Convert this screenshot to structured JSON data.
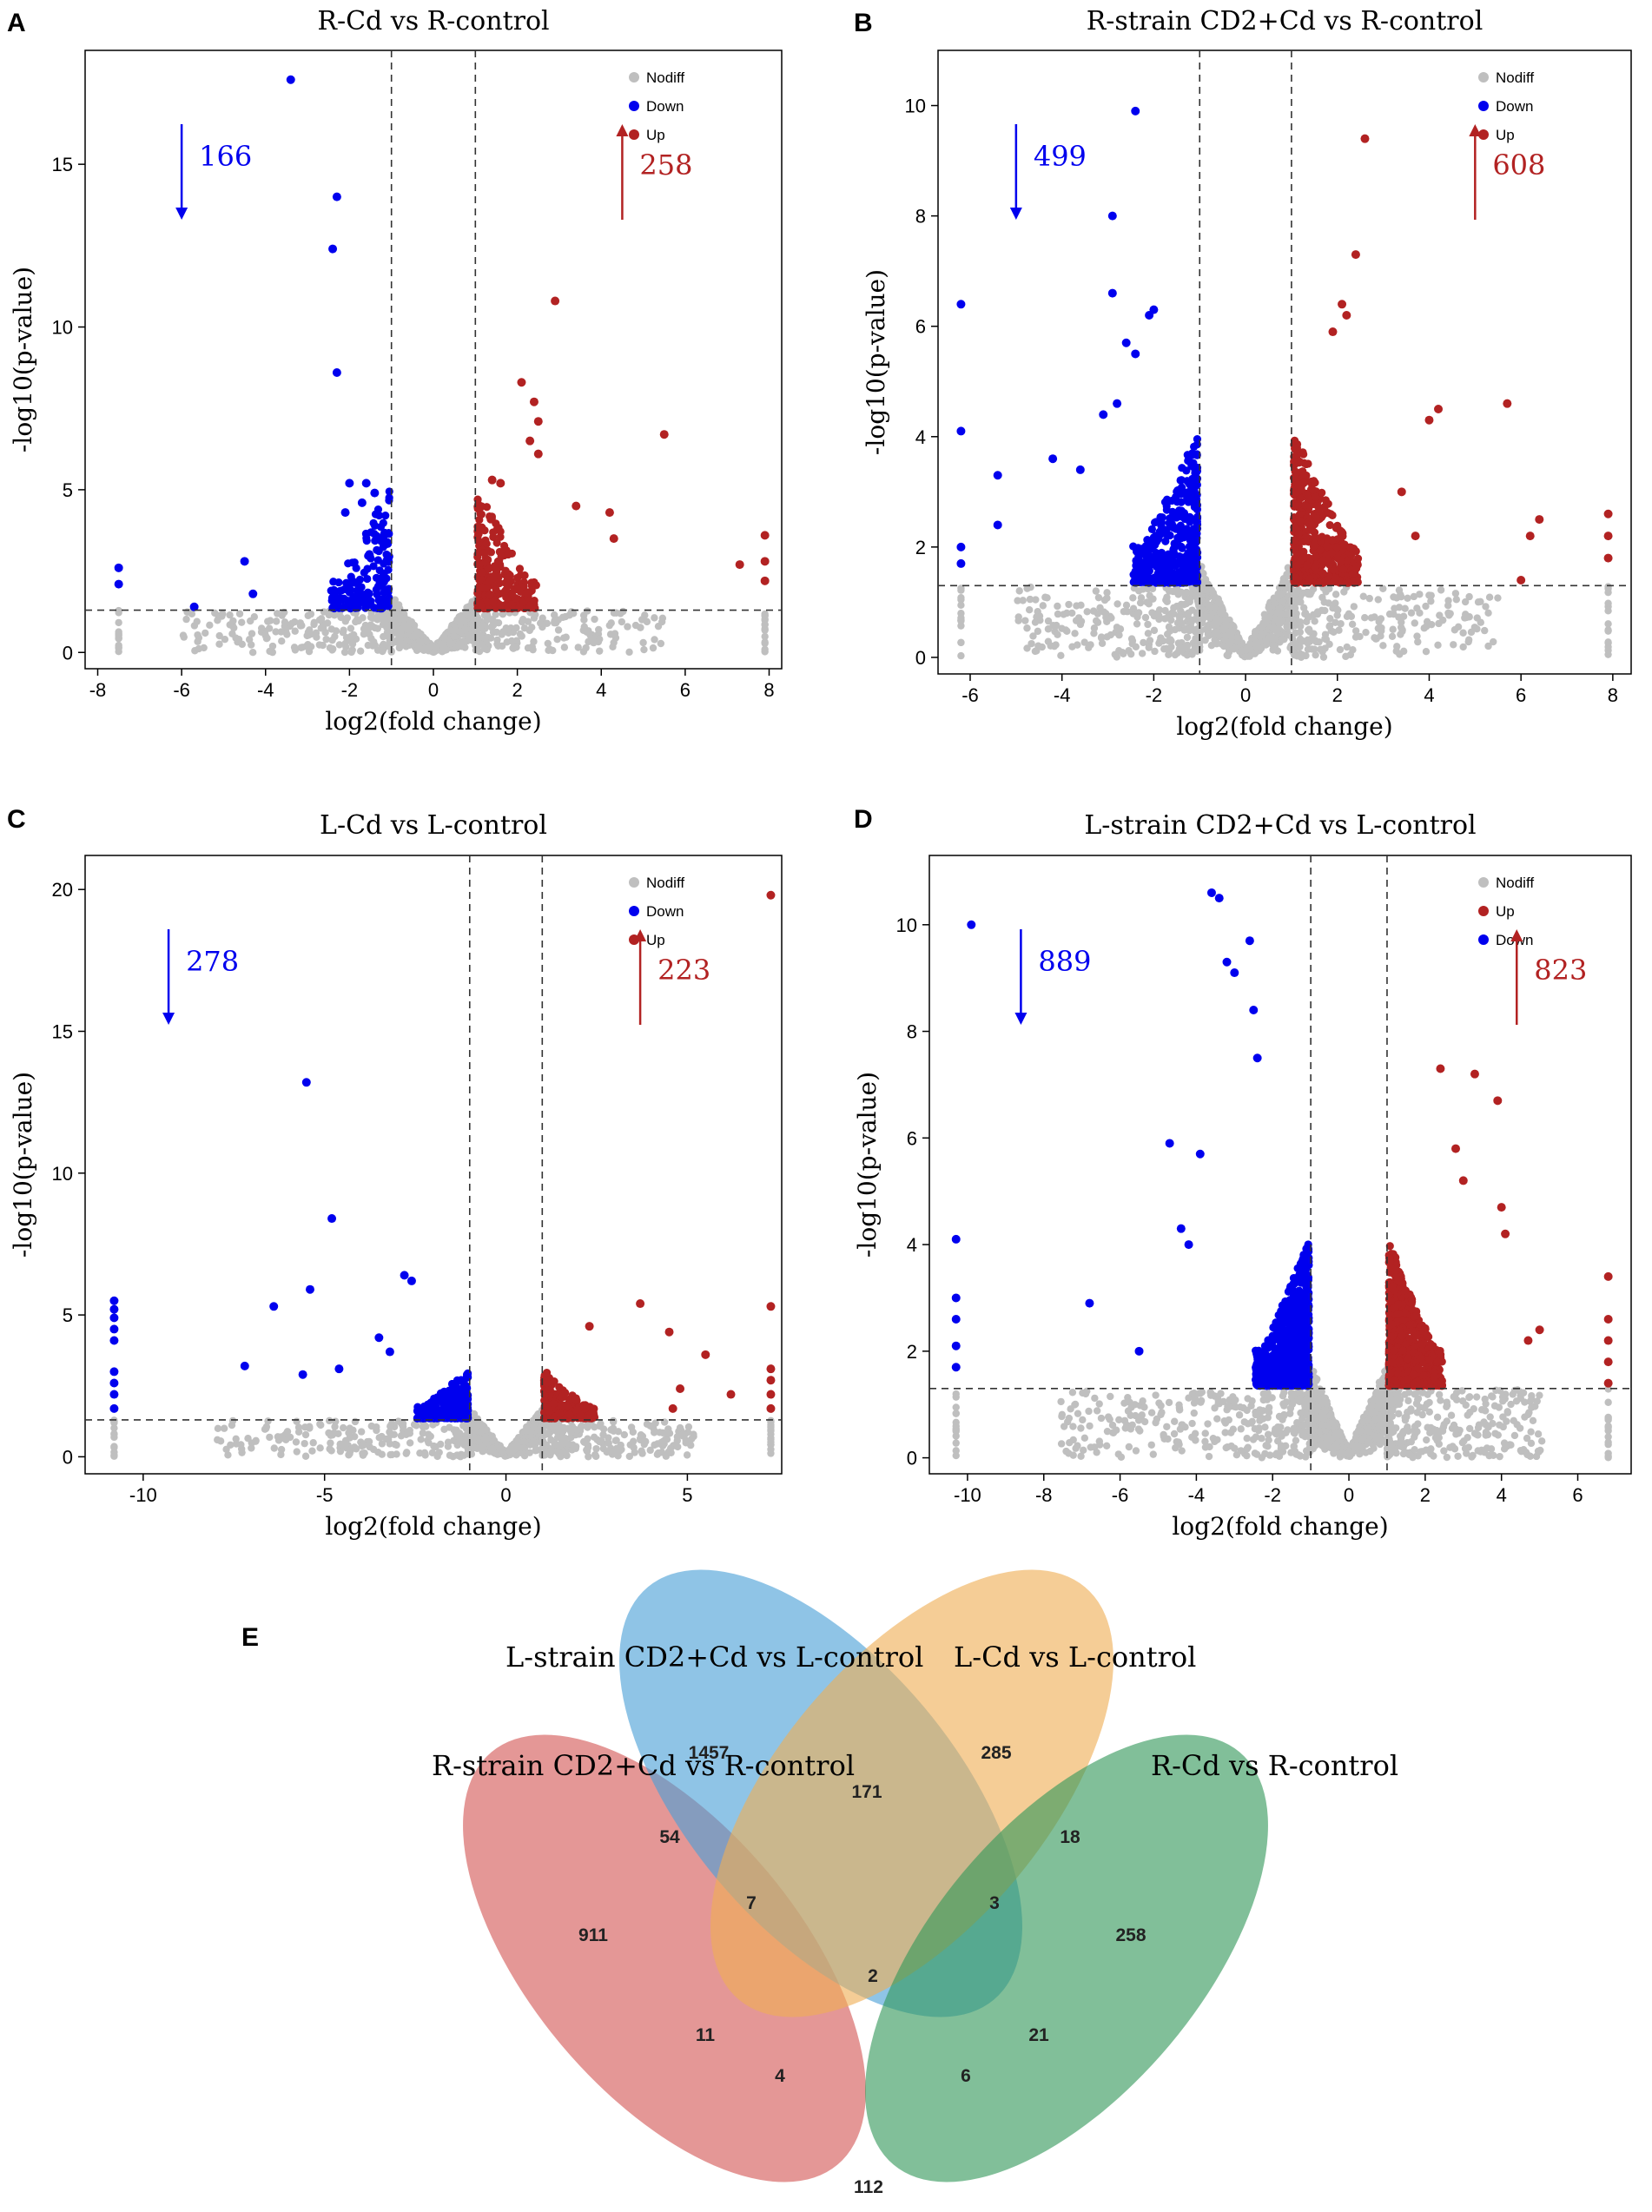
{
  "colors": {
    "nodiff": "#bfbfbf",
    "down": "#0000ee",
    "up": "#b22222",
    "axis": "#000000"
  },
  "chart_data": [
    {
      "panel": "A",
      "type": "scatter",
      "title": "R-Cd vs R-control",
      "xlabel": "log2(fold change)",
      "ylabel": "-log10(p-value)",
      "xlim": [
        -8.3,
        8.3
      ],
      "ylim": [
        -0.5,
        18.5
      ],
      "xticks": [
        -8,
        -6,
        -4,
        -2,
        0,
        2,
        4,
        6,
        8
      ],
      "yticks": [
        0,
        5,
        10,
        15
      ],
      "fc_threshold": 1,
      "p_threshold": 1.3,
      "extreme_x": [
        -7.5,
        7.9
      ],
      "ymax_cloud": 5,
      "legend": [
        {
          "label": "Nodiff",
          "color": "#bfbfbf"
        },
        {
          "label": "Down",
          "color": "#0000ee"
        },
        {
          "label": "Up",
          "color": "#b22222"
        }
      ],
      "down_count": "166",
      "up_count": "258",
      "down_arrow_x": -6,
      "up_arrow_x": 4.5,
      "series": {
        "down": [
          [
            -3.4,
            17.6
          ],
          [
            -2.3,
            14.0
          ],
          [
            -2.4,
            12.4
          ],
          [
            -2.3,
            8.6
          ],
          [
            -2.0,
            5.2
          ],
          [
            -1.6,
            5.2
          ],
          [
            -1.4,
            4.9
          ],
          [
            -4.5,
            2.8
          ],
          [
            -4.3,
            1.8
          ],
          [
            -5.7,
            1.4
          ],
          [
            -7.5,
            2.6
          ],
          [
            -7.5,
            2.1
          ],
          [
            -1.7,
            4.6
          ],
          [
            -2.1,
            4.3
          ]
        ],
        "up": [
          [
            2.9,
            10.8
          ],
          [
            5.5,
            6.7
          ],
          [
            2.1,
            8.3
          ],
          [
            2.4,
            7.7
          ],
          [
            2.5,
            7.1
          ],
          [
            2.3,
            6.5
          ],
          [
            2.5,
            6.1
          ],
          [
            1.4,
            5.3
          ],
          [
            1.6,
            5.2
          ],
          [
            3.4,
            4.5
          ],
          [
            4.3,
            3.5
          ],
          [
            4.2,
            4.3
          ],
          [
            7.9,
            3.6
          ],
          [
            7.9,
            2.8
          ],
          [
            7.9,
            2.2
          ],
          [
            7.3,
            2.7
          ]
        ]
      },
      "n_down_dense": 150,
      "n_up_dense": 240,
      "n_nodiff": 900
    },
    {
      "panel": "B",
      "type": "scatter",
      "title": "R-strain CD2+Cd vs R-control",
      "xlabel": "log2(fold change)",
      "ylabel": "-log10(p-value)",
      "xlim": [
        -6.7,
        8.4
      ],
      "ylim": [
        -0.3,
        11
      ],
      "xticks": [
        -6,
        -4,
        -2,
        0,
        2,
        4,
        6,
        8
      ],
      "yticks": [
        0,
        2,
        4,
        6,
        8,
        10
      ],
      "fc_threshold": 1,
      "p_threshold": 1.3,
      "extreme_x": [
        -6.2,
        7.9
      ],
      "ymax_cloud": 4,
      "legend": [
        {
          "label": "Nodiff",
          "color": "#bfbfbf"
        },
        {
          "label": "Down",
          "color": "#0000ee"
        },
        {
          "label": "Up",
          "color": "#b22222"
        }
      ],
      "down_count": "499",
      "up_count": "608",
      "down_arrow_x": -5,
      "up_arrow_x": 5,
      "series": {
        "down": [
          [
            -2.4,
            9.9
          ],
          [
            -2.9,
            8.0
          ],
          [
            -2.9,
            6.6
          ],
          [
            -6.2,
            6.4
          ],
          [
            -2.0,
            6.3
          ],
          [
            -2.1,
            6.2
          ],
          [
            -6.2,
            4.1
          ],
          [
            -2.6,
            5.7
          ],
          [
            -2.4,
            5.5
          ],
          [
            -4.2,
            3.6
          ],
          [
            -5.4,
            3.3
          ],
          [
            -3.6,
            3.4
          ],
          [
            -6.2,
            2.0
          ],
          [
            -6.2,
            1.7
          ],
          [
            -5.4,
            2.4
          ],
          [
            -3.1,
            4.4
          ],
          [
            -2.8,
            4.6
          ]
        ],
        "up": [
          [
            2.6,
            9.4
          ],
          [
            2.4,
            7.3
          ],
          [
            2.1,
            6.4
          ],
          [
            2.2,
            6.2
          ],
          [
            1.9,
            5.9
          ],
          [
            4.2,
            4.5
          ],
          [
            5.7,
            4.6
          ],
          [
            4.0,
            4.3
          ],
          [
            6.4,
            2.5
          ],
          [
            6.2,
            2.2
          ],
          [
            6.0,
            1.4
          ],
          [
            7.9,
            2.6
          ],
          [
            7.9,
            2.2
          ],
          [
            7.9,
            1.8
          ],
          [
            3.7,
            2.2
          ],
          [
            3.4,
            3.0
          ]
        ]
      },
      "n_down_dense": 420,
      "n_up_dense": 520,
      "n_nodiff": 1100
    },
    {
      "panel": "C",
      "type": "scatter",
      "title": "L-Cd vs L-control",
      "xlabel": "log2(fold change)",
      "ylabel": "-log10(p-value)",
      "xlim": [
        -11.6,
        7.6
      ],
      "ylim": [
        -0.6,
        21.2
      ],
      "xticks": [
        -10,
        -5,
        0,
        5
      ],
      "yticks": [
        0,
        5,
        10,
        15,
        20
      ],
      "fc_threshold": 1,
      "p_threshold": 1.3,
      "extreme_x": [
        -10.8,
        7.3
      ],
      "ymax_cloud": 3,
      "legend": [
        {
          "label": "Nodiff",
          "color": "#bfbfbf"
        },
        {
          "label": "Down",
          "color": "#0000ee"
        },
        {
          "label": "Up",
          "color": "#b22222"
        }
      ],
      "down_count": "278",
      "up_count": "223",
      "down_arrow_x": -9.3,
      "up_arrow_x": 3.7,
      "series": {
        "down": [
          [
            -5.5,
            13.2
          ],
          [
            -4.8,
            8.4
          ],
          [
            -2.8,
            6.4
          ],
          [
            -2.6,
            6.2
          ],
          [
            -5.4,
            5.9
          ],
          [
            -6.4,
            5.3
          ],
          [
            -7.2,
            3.2
          ],
          [
            -10.8,
            5.5
          ],
          [
            -10.8,
            5.2
          ],
          [
            -10.8,
            4.9
          ],
          [
            -10.8,
            4.5
          ],
          [
            -10.8,
            4.1
          ],
          [
            -10.8,
            3.0
          ],
          [
            -10.8,
            2.6
          ],
          [
            -10.8,
            2.2
          ],
          [
            -10.8,
            1.7
          ],
          [
            -4.6,
            3.1
          ],
          [
            -3.5,
            4.2
          ],
          [
            -3.2,
            3.7
          ],
          [
            -5.6,
            2.9
          ]
        ],
        "up": [
          [
            7.3,
            19.8
          ],
          [
            3.7,
            5.4
          ],
          [
            4.5,
            4.4
          ],
          [
            2.3,
            4.6
          ],
          [
            7.3,
            5.3
          ],
          [
            7.3,
            3.1
          ],
          [
            7.3,
            2.7
          ],
          [
            7.3,
            2.2
          ],
          [
            7.3,
            1.7
          ],
          [
            5.5,
            3.6
          ],
          [
            6.2,
            2.2
          ],
          [
            4.6,
            1.7
          ],
          [
            4.8,
            2.4
          ]
        ]
      },
      "n_down_dense": 250,
      "n_up_dense": 200,
      "n_nodiff": 900
    },
    {
      "panel": "D",
      "type": "scatter",
      "title": "L-strain CD2+Cd vs L-control",
      "xlabel": "log2(fold change)",
      "ylabel": "-log10(p-value)",
      "xlim": [
        -11,
        7.4
      ],
      "ylim": [
        -0.3,
        11.3
      ],
      "xticks": [
        -10,
        -8,
        -6,
        -4,
        -2,
        0,
        2,
        4,
        6
      ],
      "yticks": [
        0,
        2,
        4,
        6,
        8,
        10
      ],
      "fc_threshold": 1,
      "p_threshold": 1.3,
      "extreme_x": [
        -10.3,
        6.8
      ],
      "ymax_cloud": 4,
      "legend": [
        {
          "label": "Nodiff",
          "color": "#bfbfbf"
        },
        {
          "label": "Up",
          "color": "#b22222"
        },
        {
          "label": "Down",
          "color": "#0000ee"
        }
      ],
      "down_count": "889",
      "up_count": "823",
      "down_arrow_x": -8.6,
      "up_arrow_x": 4.4,
      "series": {
        "down": [
          [
            -3.6,
            10.6
          ],
          [
            -3.4,
            10.5
          ],
          [
            -9.9,
            10.0
          ],
          [
            -2.6,
            9.7
          ],
          [
            -3.2,
            9.3
          ],
          [
            -3.0,
            9.1
          ],
          [
            -2.5,
            8.4
          ],
          [
            -2.4,
            7.5
          ],
          [
            -4.7,
            5.9
          ],
          [
            -3.9,
            5.7
          ],
          [
            -10.3,
            4.1
          ],
          [
            -10.3,
            3.0
          ],
          [
            -10.3,
            2.6
          ],
          [
            -6.8,
            2.9
          ],
          [
            -5.5,
            2.0
          ],
          [
            -10.3,
            2.1
          ],
          [
            -10.3,
            1.7
          ],
          [
            -4.4,
            4.3
          ],
          [
            -4.2,
            4.0
          ]
        ],
        "up": [
          [
            2.4,
            7.3
          ],
          [
            3.3,
            7.2
          ],
          [
            3.9,
            6.7
          ],
          [
            4.0,
            4.7
          ],
          [
            4.1,
            4.2
          ],
          [
            6.8,
            3.4
          ],
          [
            6.8,
            2.6
          ],
          [
            6.8,
            2.2
          ],
          [
            6.8,
            1.8
          ],
          [
            6.8,
            1.4
          ],
          [
            5.0,
            2.4
          ],
          [
            4.7,
            2.2
          ],
          [
            3.0,
            5.2
          ],
          [
            2.8,
            5.8
          ]
        ]
      },
      "n_down_dense": 800,
      "n_up_dense": 740,
      "n_nodiff": 1300
    },
    {
      "panel": "E",
      "type": "venn",
      "sets": [
        {
          "name": "R-strain CD2+Cd vs R-control",
          "color": "#d45755"
        },
        {
          "name": "L-strain CD2+Cd vs L-control",
          "color": "#4a9fd6"
        },
        {
          "name": "L-Cd vs L-control",
          "color": "#efae55"
        },
        {
          "name": "R-Cd vs R-control",
          "color": "#34985a"
        }
      ],
      "regions": [
        {
          "sets": "R",
          "value": "911"
        },
        {
          "sets": "LS",
          "value": "1457"
        },
        {
          "sets": "LC",
          "value": "285"
        },
        {
          "sets": "RC",
          "value": "258"
        },
        {
          "sets": "R+LS",
          "value": "54"
        },
        {
          "sets": "LS+LC",
          "value": "171"
        },
        {
          "sets": "LC+RC",
          "value": "18"
        },
        {
          "sets": "R+LS+LC",
          "value": "7"
        },
        {
          "sets": "LS+LC+RC",
          "value": "3"
        },
        {
          "sets": "R+LS+LC+RC",
          "value": "2"
        },
        {
          "sets": "R+LC",
          "value": "11"
        },
        {
          "sets": "LS+RC",
          "value": "21"
        },
        {
          "sets": "R+LC+RC",
          "value": "4"
        },
        {
          "sets": "R+LS+RC",
          "value": "6"
        },
        {
          "sets": "R+RC",
          "value": "112"
        }
      ]
    }
  ]
}
